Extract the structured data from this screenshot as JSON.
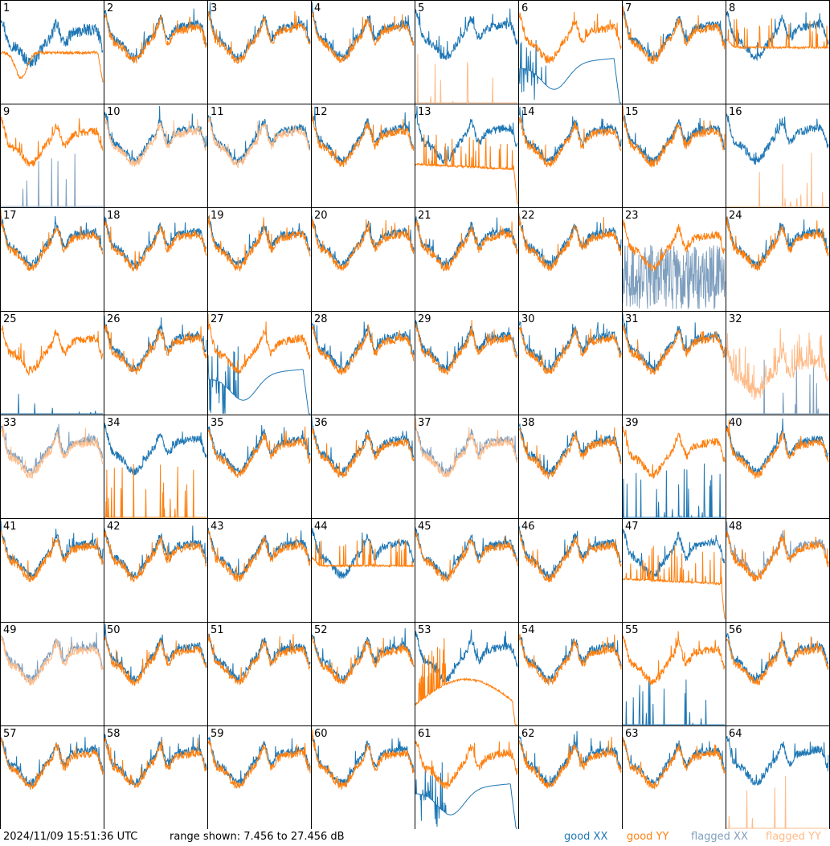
{
  "footer": {
    "timestamp": "2024/11/09 15:51:36 UTC",
    "range_text": "range shown: 7.456 to 27.456 dB",
    "legend": {
      "good_xx": "good XX",
      "good_yy": "good YY",
      "flagged_xx": "flagged XX",
      "flagged_yy": "flagged YY"
    }
  },
  "colors": {
    "good_xx": "#1f77b4",
    "good_yy": "#ff7f0e",
    "flagged_xx": "#7f9fbf",
    "flagged_yy": "#ffbb88",
    "border": "#000000"
  },
  "chart_data": {
    "type": "line",
    "layout": "8x8 grid of small multiples",
    "ylim_db": [
      7.456,
      27.456
    ],
    "tiles": [
      {
        "id": "1",
        "xx": "noisy",
        "yy": "flat-orange-dip"
      },
      {
        "id": "2",
        "xx": "good",
        "yy": "good"
      },
      {
        "id": "3",
        "xx": "good",
        "yy": "good"
      },
      {
        "id": "4",
        "xx": "good",
        "yy": "good"
      },
      {
        "id": "5",
        "xx": "good",
        "yy": "flag-spikes"
      },
      {
        "id": "6",
        "xx": "sag",
        "yy": "good"
      },
      {
        "id": "7",
        "xx": "good",
        "yy": "good"
      },
      {
        "id": "8",
        "xx": "good",
        "yy": "flat"
      },
      {
        "id": "9",
        "xx": "flag-spikes",
        "yy": "good"
      },
      {
        "id": "10",
        "xx": "good",
        "yy": "flagged"
      },
      {
        "id": "11",
        "xx": "good",
        "yy": "flagged"
      },
      {
        "id": "12",
        "xx": "good",
        "yy": "good"
      },
      {
        "id": "13",
        "xx": "good",
        "yy": "flat-end-drop"
      },
      {
        "id": "14",
        "xx": "good",
        "yy": "good"
      },
      {
        "id": "15",
        "xx": "good",
        "yy": "good"
      },
      {
        "id": "16",
        "xx": "good",
        "yy": "flag-spikes"
      },
      {
        "id": "17",
        "xx": "good",
        "yy": "good"
      },
      {
        "id": "18",
        "xx": "good",
        "yy": "good"
      },
      {
        "id": "19",
        "xx": "good",
        "yy": "good"
      },
      {
        "id": "20",
        "xx": "good",
        "yy": "good"
      },
      {
        "id": "21",
        "xx": "good",
        "yy": "good"
      },
      {
        "id": "22",
        "xx": "good",
        "yy": "good"
      },
      {
        "id": "23",
        "xx": "flag-noise",
        "yy": "good"
      },
      {
        "id": "24",
        "xx": "good",
        "yy": "good"
      },
      {
        "id": "25",
        "xx": "spike-only",
        "yy": "good"
      },
      {
        "id": "26",
        "xx": "good",
        "yy": "good"
      },
      {
        "id": "27",
        "xx": "sag",
        "yy": "good"
      },
      {
        "id": "28",
        "xx": "good",
        "yy": "good"
      },
      {
        "id": "29",
        "xx": "good",
        "yy": "good"
      },
      {
        "id": "30",
        "xx": "good",
        "yy": "good"
      },
      {
        "id": "31",
        "xx": "good",
        "yy": "good"
      },
      {
        "id": "32",
        "xx": "flag-spikes",
        "yy": "flagged-noisy"
      },
      {
        "id": "33",
        "xx": "flagged",
        "yy": "flagged"
      },
      {
        "id": "34",
        "xx": "good",
        "yy": "spikes"
      },
      {
        "id": "35",
        "xx": "good",
        "yy": "good"
      },
      {
        "id": "36",
        "xx": "good",
        "yy": "good"
      },
      {
        "id": "37",
        "xx": "flagged",
        "yy": "flagged"
      },
      {
        "id": "38",
        "xx": "good",
        "yy": "good"
      },
      {
        "id": "39",
        "xx": "spikes",
        "yy": "good"
      },
      {
        "id": "40",
        "xx": "good",
        "yy": "good"
      },
      {
        "id": "41",
        "xx": "good",
        "yy": "good"
      },
      {
        "id": "42",
        "xx": "good",
        "yy": "good"
      },
      {
        "id": "43",
        "xx": "good",
        "yy": "good"
      },
      {
        "id": "44",
        "xx": "good",
        "yy": "flat"
      },
      {
        "id": "45",
        "xx": "good",
        "yy": "good"
      },
      {
        "id": "46",
        "xx": "good",
        "yy": "good"
      },
      {
        "id": "47",
        "xx": "good",
        "yy": "flat-end-drop"
      },
      {
        "id": "48",
        "xx": "flagged",
        "yy": "good"
      },
      {
        "id": "49",
        "xx": "flagged",
        "yy": "flagged"
      },
      {
        "id": "50",
        "xx": "good",
        "yy": "good"
      },
      {
        "id": "51",
        "xx": "good",
        "yy": "good"
      },
      {
        "id": "52",
        "xx": "good",
        "yy": "good"
      },
      {
        "id": "53",
        "xx": "good",
        "yy": "low-arc"
      },
      {
        "id": "54",
        "xx": "good",
        "yy": "good"
      },
      {
        "id": "55",
        "xx": "spikes",
        "yy": "good"
      },
      {
        "id": "56",
        "xx": "good",
        "yy": "good"
      },
      {
        "id": "57",
        "xx": "good",
        "yy": "good"
      },
      {
        "id": "58",
        "xx": "good",
        "yy": "good"
      },
      {
        "id": "59",
        "xx": "good",
        "yy": "good"
      },
      {
        "id": "60",
        "xx": "good",
        "yy": "good"
      },
      {
        "id": "61",
        "xx": "sag",
        "yy": "good"
      },
      {
        "id": "62",
        "xx": "good",
        "yy": "good"
      },
      {
        "id": "63",
        "xx": "good",
        "yy": "good"
      },
      {
        "id": "64",
        "xx": "good",
        "yy": "flag-spikes"
      }
    ]
  }
}
